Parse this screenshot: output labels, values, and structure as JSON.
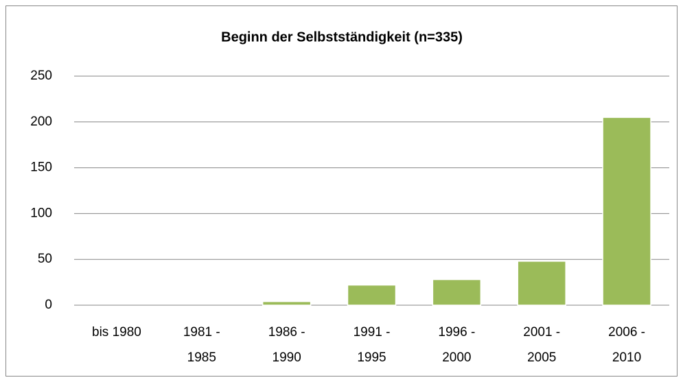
{
  "chart_data": {
    "type": "bar",
    "title": "Beginn der Selbstständigkeit (n=335)",
    "categories": [
      "bis 1980",
      "1981 - 1985",
      "1986 - 1990",
      "1991 - 1995",
      "1996 - 2000",
      "2001 - 2005",
      "2006 - 2010"
    ],
    "values": [
      0,
      0,
      4,
      22,
      28,
      48,
      205
    ],
    "color": "#9bbb59",
    "ylim": [
      0,
      250
    ],
    "yticks": [
      0,
      50,
      100,
      150,
      200,
      250
    ],
    "grid": true
  }
}
